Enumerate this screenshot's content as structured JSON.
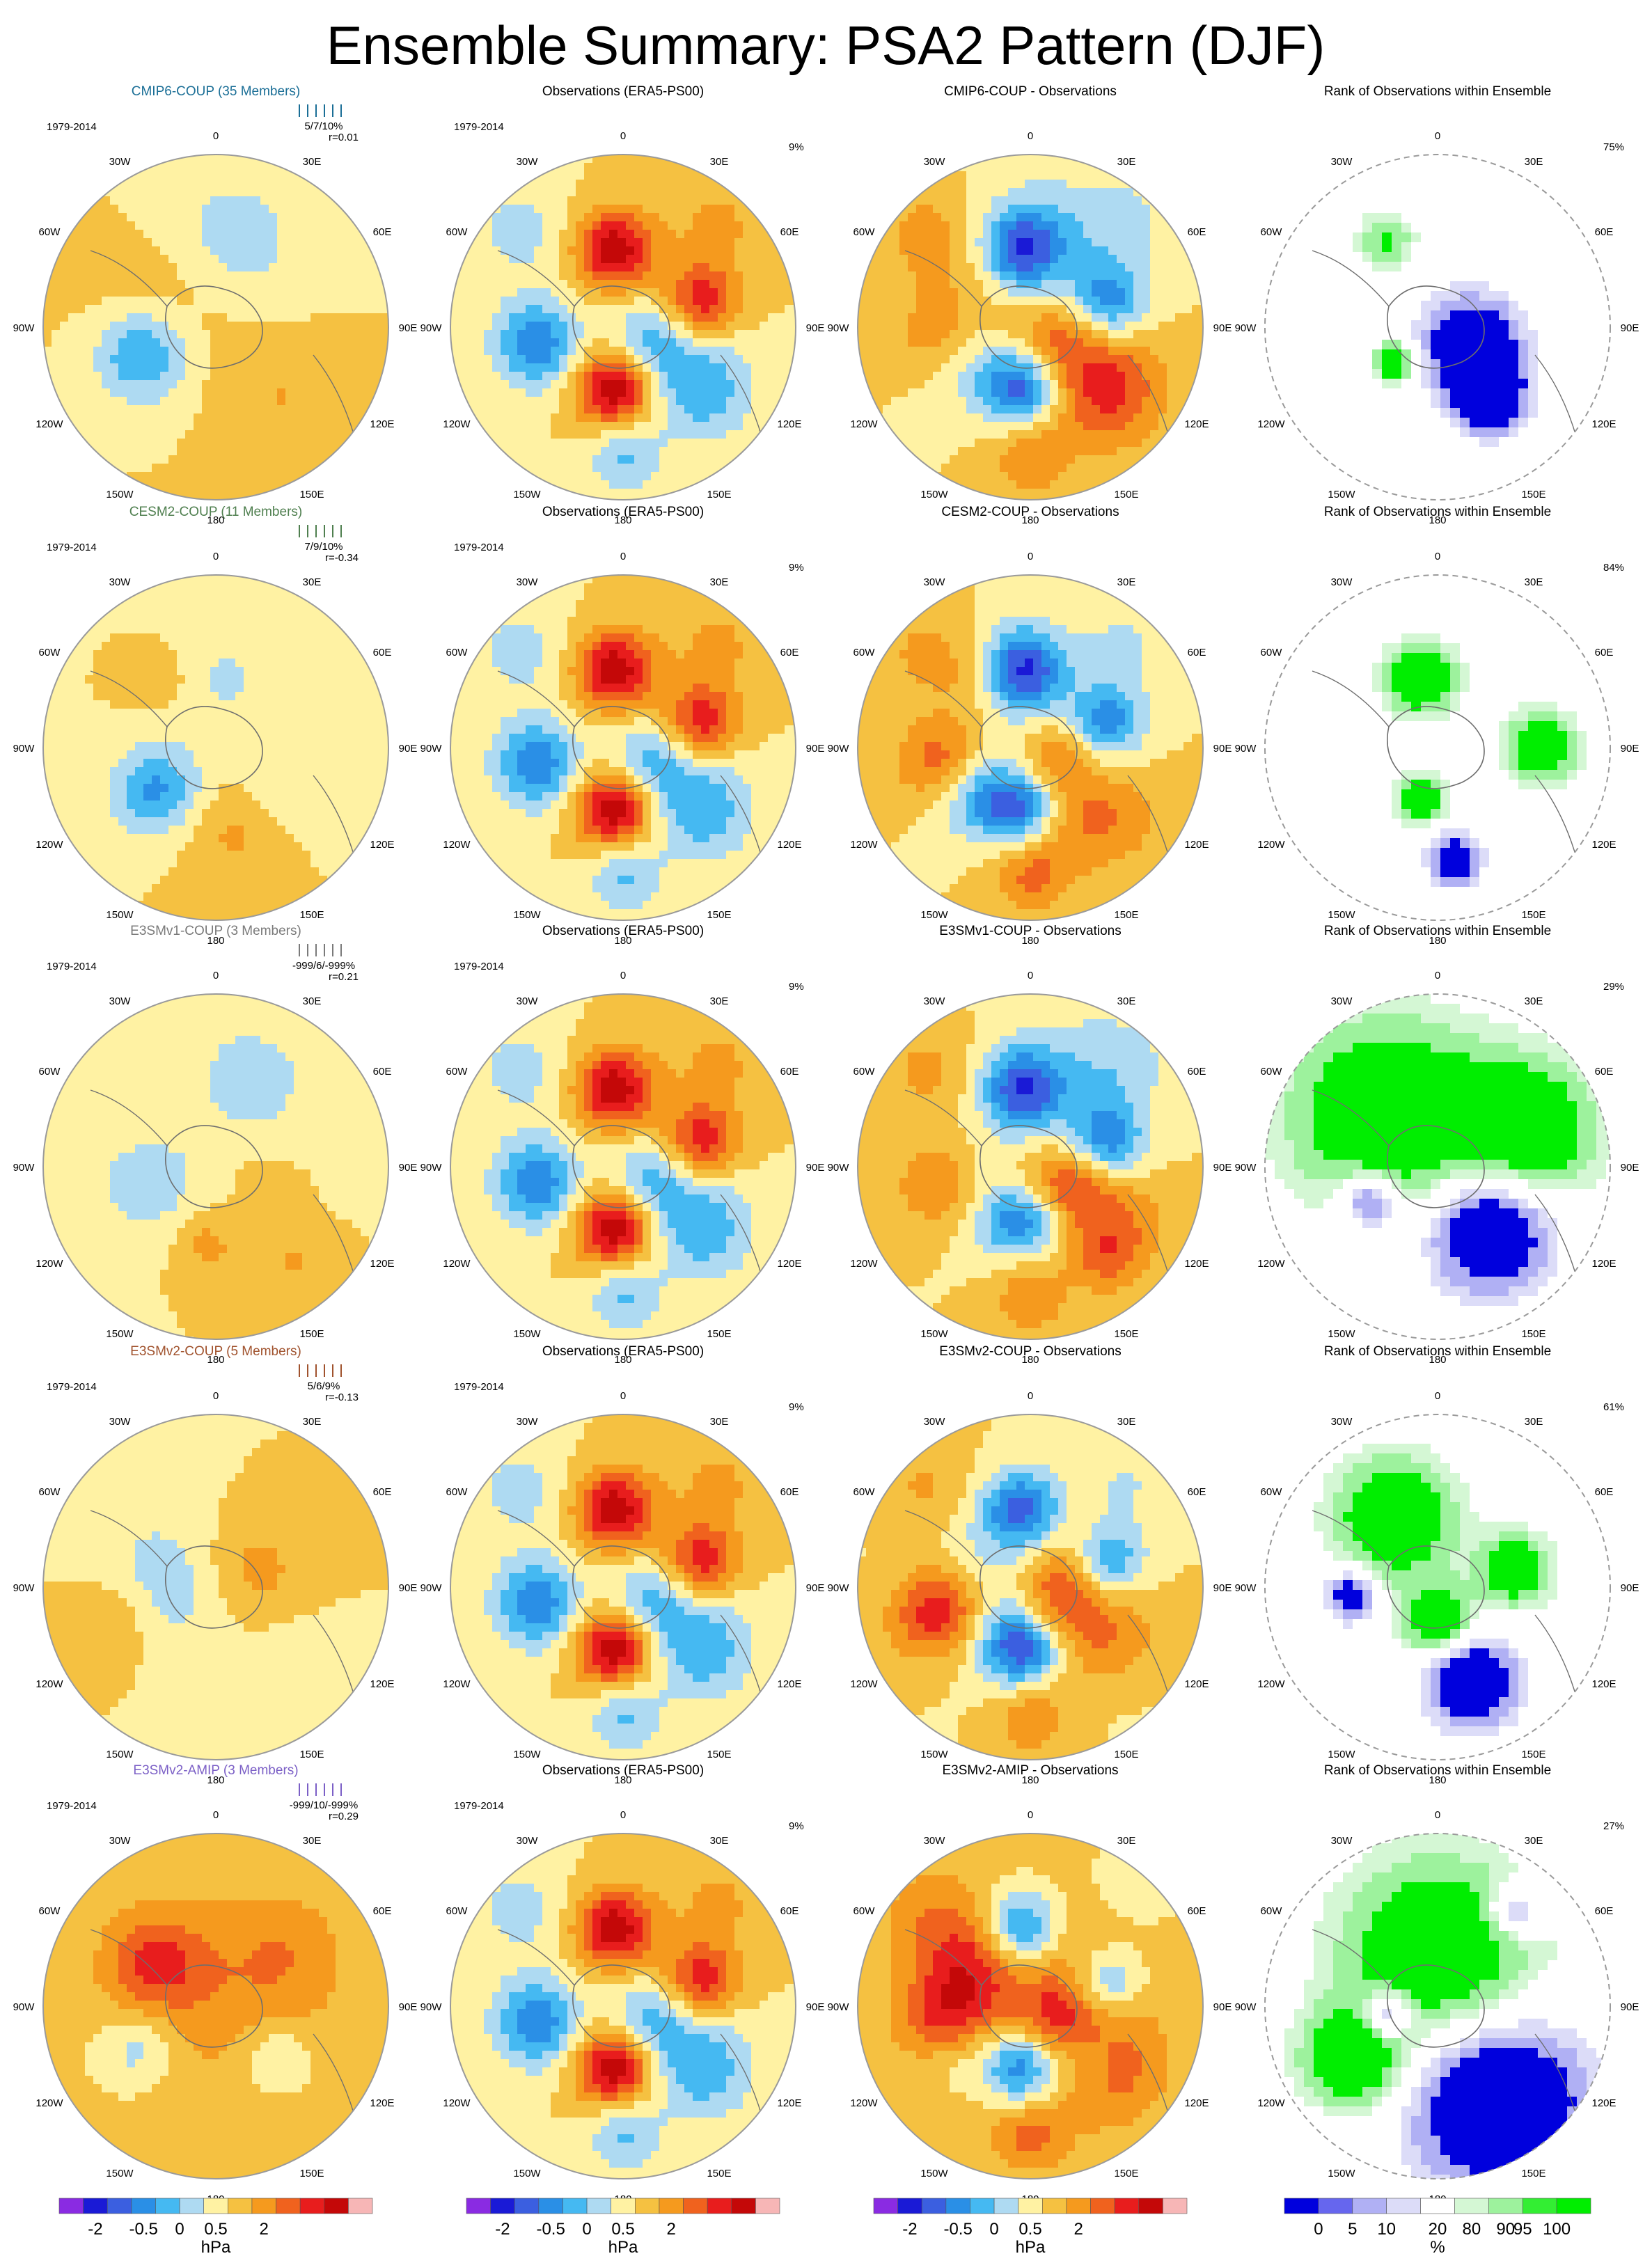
{
  "figure": {
    "title": "Ensemble Summary: PSA2 Pattern (DJF)"
  },
  "colors": {
    "bg": "#ffffff",
    "map_bg": "#ffffff",
    "coast": "#6e6e6e",
    "outline": "#9a9a9a",
    "cesm_title": "#4f7f4f",
    "cmip_title": "#1a6e96",
    "e3v1_title": "#7a7a7a",
    "e3v2_title": "#a0522d",
    "amip_title": "#7b5fc6"
  },
  "common": {
    "period": "1979-2014",
    "obs_title": "Observations (ERA5-PS00)",
    "obs_pct": "9%",
    "rank_title": "Rank of Observations within Ensemble",
    "lon_labels": [
      "0",
      "30E",
      "60E",
      "90E",
      "120E",
      "150E",
      "180",
      "150W",
      "120W",
      "90W",
      "60W",
      "30W"
    ]
  },
  "rows": [
    {
      "model_title": "CMIP6-COUP (35 Members)",
      "stats": "5/7/10%",
      "r": "r=0.01",
      "diff_title": "CMIP6-COUP - Observations",
      "rank_pct": "75%",
      "color_key": "cmip_title"
    },
    {
      "model_title": "CESM2-COUP (11 Members)",
      "stats": "7/9/10%",
      "r": "r=-0.34",
      "diff_title": "CESM2-COUP - Observations",
      "rank_pct": "84%",
      "color_key": "cesm_title"
    },
    {
      "model_title": "E3SMv1-COUP (3 Members)",
      "stats": "-999/6/-999%",
      "r": "r=0.21",
      "diff_title": "E3SMv1-COUP - Observations",
      "rank_pct": "29%",
      "color_key": "e3v1_title"
    },
    {
      "model_title": "E3SMv2-COUP (5 Members)",
      "stats": "5/6/9%",
      "r": "r=-0.13",
      "diff_title": "E3SMv2-COUP - Observations",
      "rank_pct": "61%",
      "color_key": "e3v2_title"
    },
    {
      "model_title": "E3SMv2-AMIP (3 Members)",
      "stats": "-999/10/-999%",
      "r": "r=0.29",
      "diff_title": "E3SMv2-AMIP - Observations",
      "rank_pct": "27%",
      "color_key": "amip_title"
    }
  ],
  "colorbar_hpa": {
    "unit": "hPa",
    "tick_labels": [
      "-2",
      "-0.5",
      "0",
      "0.5",
      "2"
    ],
    "tick_index": [
      1.5,
      3.5,
      5,
      6.5,
      8.5
    ],
    "colors": [
      "#8a2be2",
      "#1a1ad6",
      "#3b5fe0",
      "#2a8fe6",
      "#45b9f2",
      "#aedaf2",
      "#fff2a3",
      "#f5c141",
      "#f59a1e",
      "#f0621e",
      "#e81d1d",
      "#c40808",
      "#f7b6b6"
    ]
  },
  "colorbar_pct": {
    "unit": "%",
    "tick_labels": [
      "0",
      "5",
      "10",
      "20",
      "80",
      "90",
      "95",
      "100"
    ],
    "tick_index": [
      1,
      2,
      3,
      4.5,
      5.5,
      6.5,
      7,
      8
    ],
    "colors": [
      "#0000dd",
      "#6666ee",
      "#b0b0f4",
      "#dcdcf8",
      "#ffffff",
      "#d4f7d4",
      "#9df29d",
      "#33ee33",
      "#00ee00"
    ]
  },
  "chart_data": [
    {
      "type": "heatmap",
      "panel": "model",
      "unit": "hPa",
      "x_range": [
        "0",
        "360"
      ]
    },
    {
      "type": "heatmap",
      "panel": "observations",
      "unit": "hPa"
    },
    {
      "type": "heatmap",
      "panel": "difference",
      "unit": "hPa"
    },
    {
      "type": "heatmap",
      "panel": "rank",
      "unit": "%"
    }
  ]
}
